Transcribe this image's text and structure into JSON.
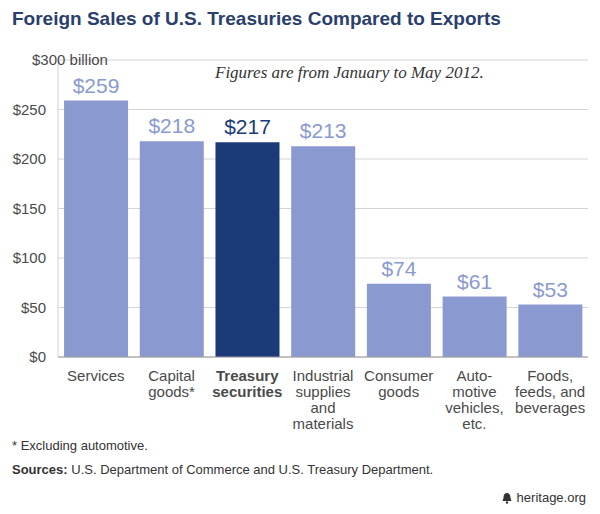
{
  "chart_data": {
    "type": "bar",
    "title": "Foreign Sales of U.S. Treasuries Compared to Exports",
    "annotation": "Figures are from January to May 2012.",
    "categories": [
      "Services",
      "Capital goods*",
      "Treasury securities",
      "Industrial supplies and materials",
      "Consumer goods",
      "Auto-motive vehicles, etc.",
      "Foods, feeds, and beverages"
    ],
    "values": [
      259,
      218,
      217,
      213,
      74,
      61,
      53
    ],
    "value_labels": [
      "$259",
      "$218",
      "$217",
      "$213",
      "$74",
      "$61",
      "$53"
    ],
    "colors": [
      "#8a9ad0",
      "#8a9ad0",
      "#1c3a78",
      "#8a9ad0",
      "#8a9ad0",
      "#8a9ad0",
      "#8a9ad0"
    ],
    "ylim": [
      0,
      300
    ],
    "yticks": [
      {
        "value": 0,
        "label": "$0"
      },
      {
        "value": 50,
        "label": "$50"
      },
      {
        "value": 100,
        "label": "$100"
      },
      {
        "value": 150,
        "label": "$150"
      },
      {
        "value": 200,
        "label": "$200"
      },
      {
        "value": 250,
        "label": "$250"
      },
      {
        "value": 300,
        "label": "$300 billion"
      }
    ],
    "grid": true,
    "data_labels": true,
    "footnote": "* Excluding automotive.",
    "sources_label": "Sources:",
    "sources": "U.S. Department of Commerce and U.S. Treasury Department.",
    "credit": "heritage.org"
  }
}
